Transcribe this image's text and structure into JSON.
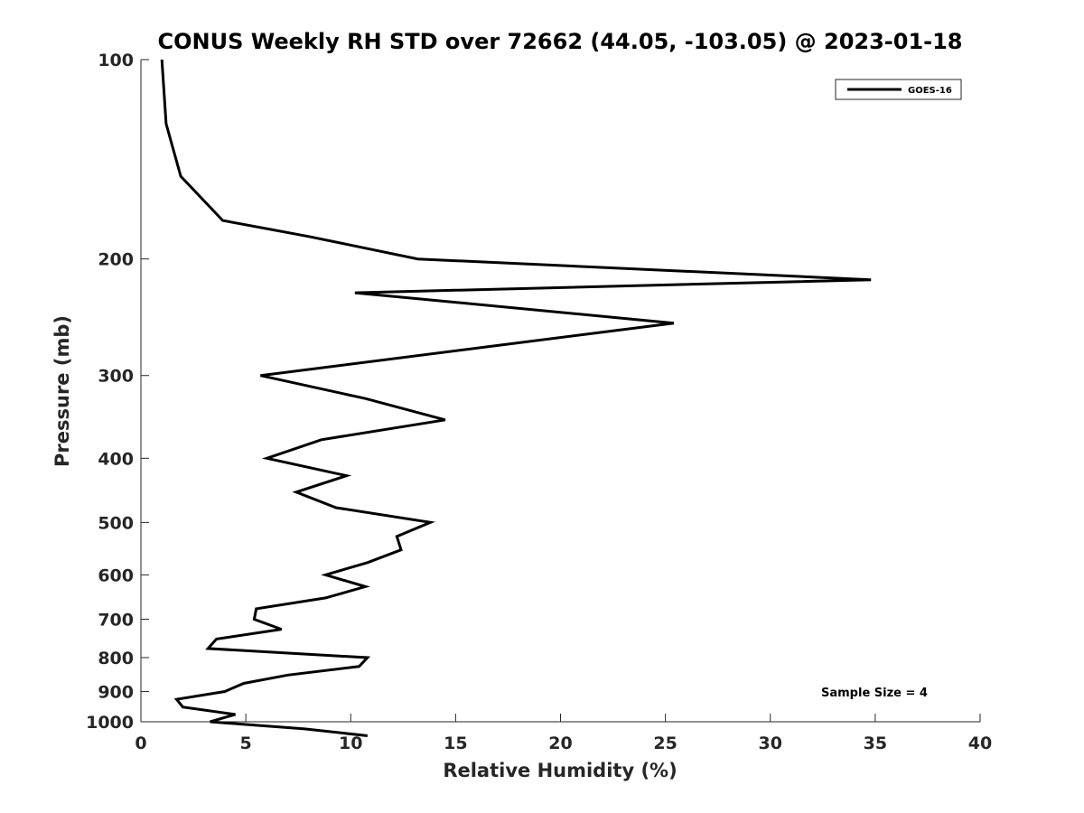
{
  "chart_data": {
    "type": "line",
    "title": "CONUS Weekly RH STD over 72662 (44.05, -103.05) @ 2023-01-18",
    "xlabel": "Relative Humidity (%)",
    "ylabel": "Pressure (mb)",
    "xlim": [
      0,
      40
    ],
    "ylim": [
      100,
      1000
    ],
    "y_scale": "log",
    "y_reversed": true,
    "x_ticks": [
      0,
      5,
      10,
      15,
      20,
      25,
      30,
      35,
      40
    ],
    "y_ticks": [
      100,
      200,
      300,
      400,
      500,
      600,
      700,
      800,
      900,
      1000
    ],
    "grid": false,
    "legend_position": "top-right",
    "annotation": "Sample Size = 4",
    "series": [
      {
        "name": "GOES-16",
        "color": "#000000",
        "points": [
          [
            1.0,
            100
          ],
          [
            1.2,
            125
          ],
          [
            1.9,
            150
          ],
          [
            3.9,
            175
          ],
          [
            8.0,
            185
          ],
          [
            13.2,
            200
          ],
          [
            34.8,
            215
          ],
          [
            10.2,
            225
          ],
          [
            25.4,
            250
          ],
          [
            5.7,
            300
          ],
          [
            10.7,
            325
          ],
          [
            14.5,
            350
          ],
          [
            8.6,
            375
          ],
          [
            6.0,
            400
          ],
          [
            9.8,
            425
          ],
          [
            7.4,
            450
          ],
          [
            9.3,
            475
          ],
          [
            13.8,
            500
          ],
          [
            12.2,
            525
          ],
          [
            12.4,
            550
          ],
          [
            10.8,
            575
          ],
          [
            8.8,
            600
          ],
          [
            10.7,
            625
          ],
          [
            8.8,
            650
          ],
          [
            5.5,
            675
          ],
          [
            5.4,
            700
          ],
          [
            6.7,
            725
          ],
          [
            3.6,
            750
          ],
          [
            3.2,
            775
          ],
          [
            10.8,
            800
          ],
          [
            10.4,
            825
          ],
          [
            7.0,
            850
          ],
          [
            4.9,
            875
          ],
          [
            4.0,
            900
          ],
          [
            1.7,
            925
          ],
          [
            2.0,
            950
          ],
          [
            4.5,
            975
          ],
          [
            3.3,
            1000
          ],
          [
            7.8,
            1025
          ],
          [
            10.8,
            1050
          ]
        ]
      }
    ]
  }
}
